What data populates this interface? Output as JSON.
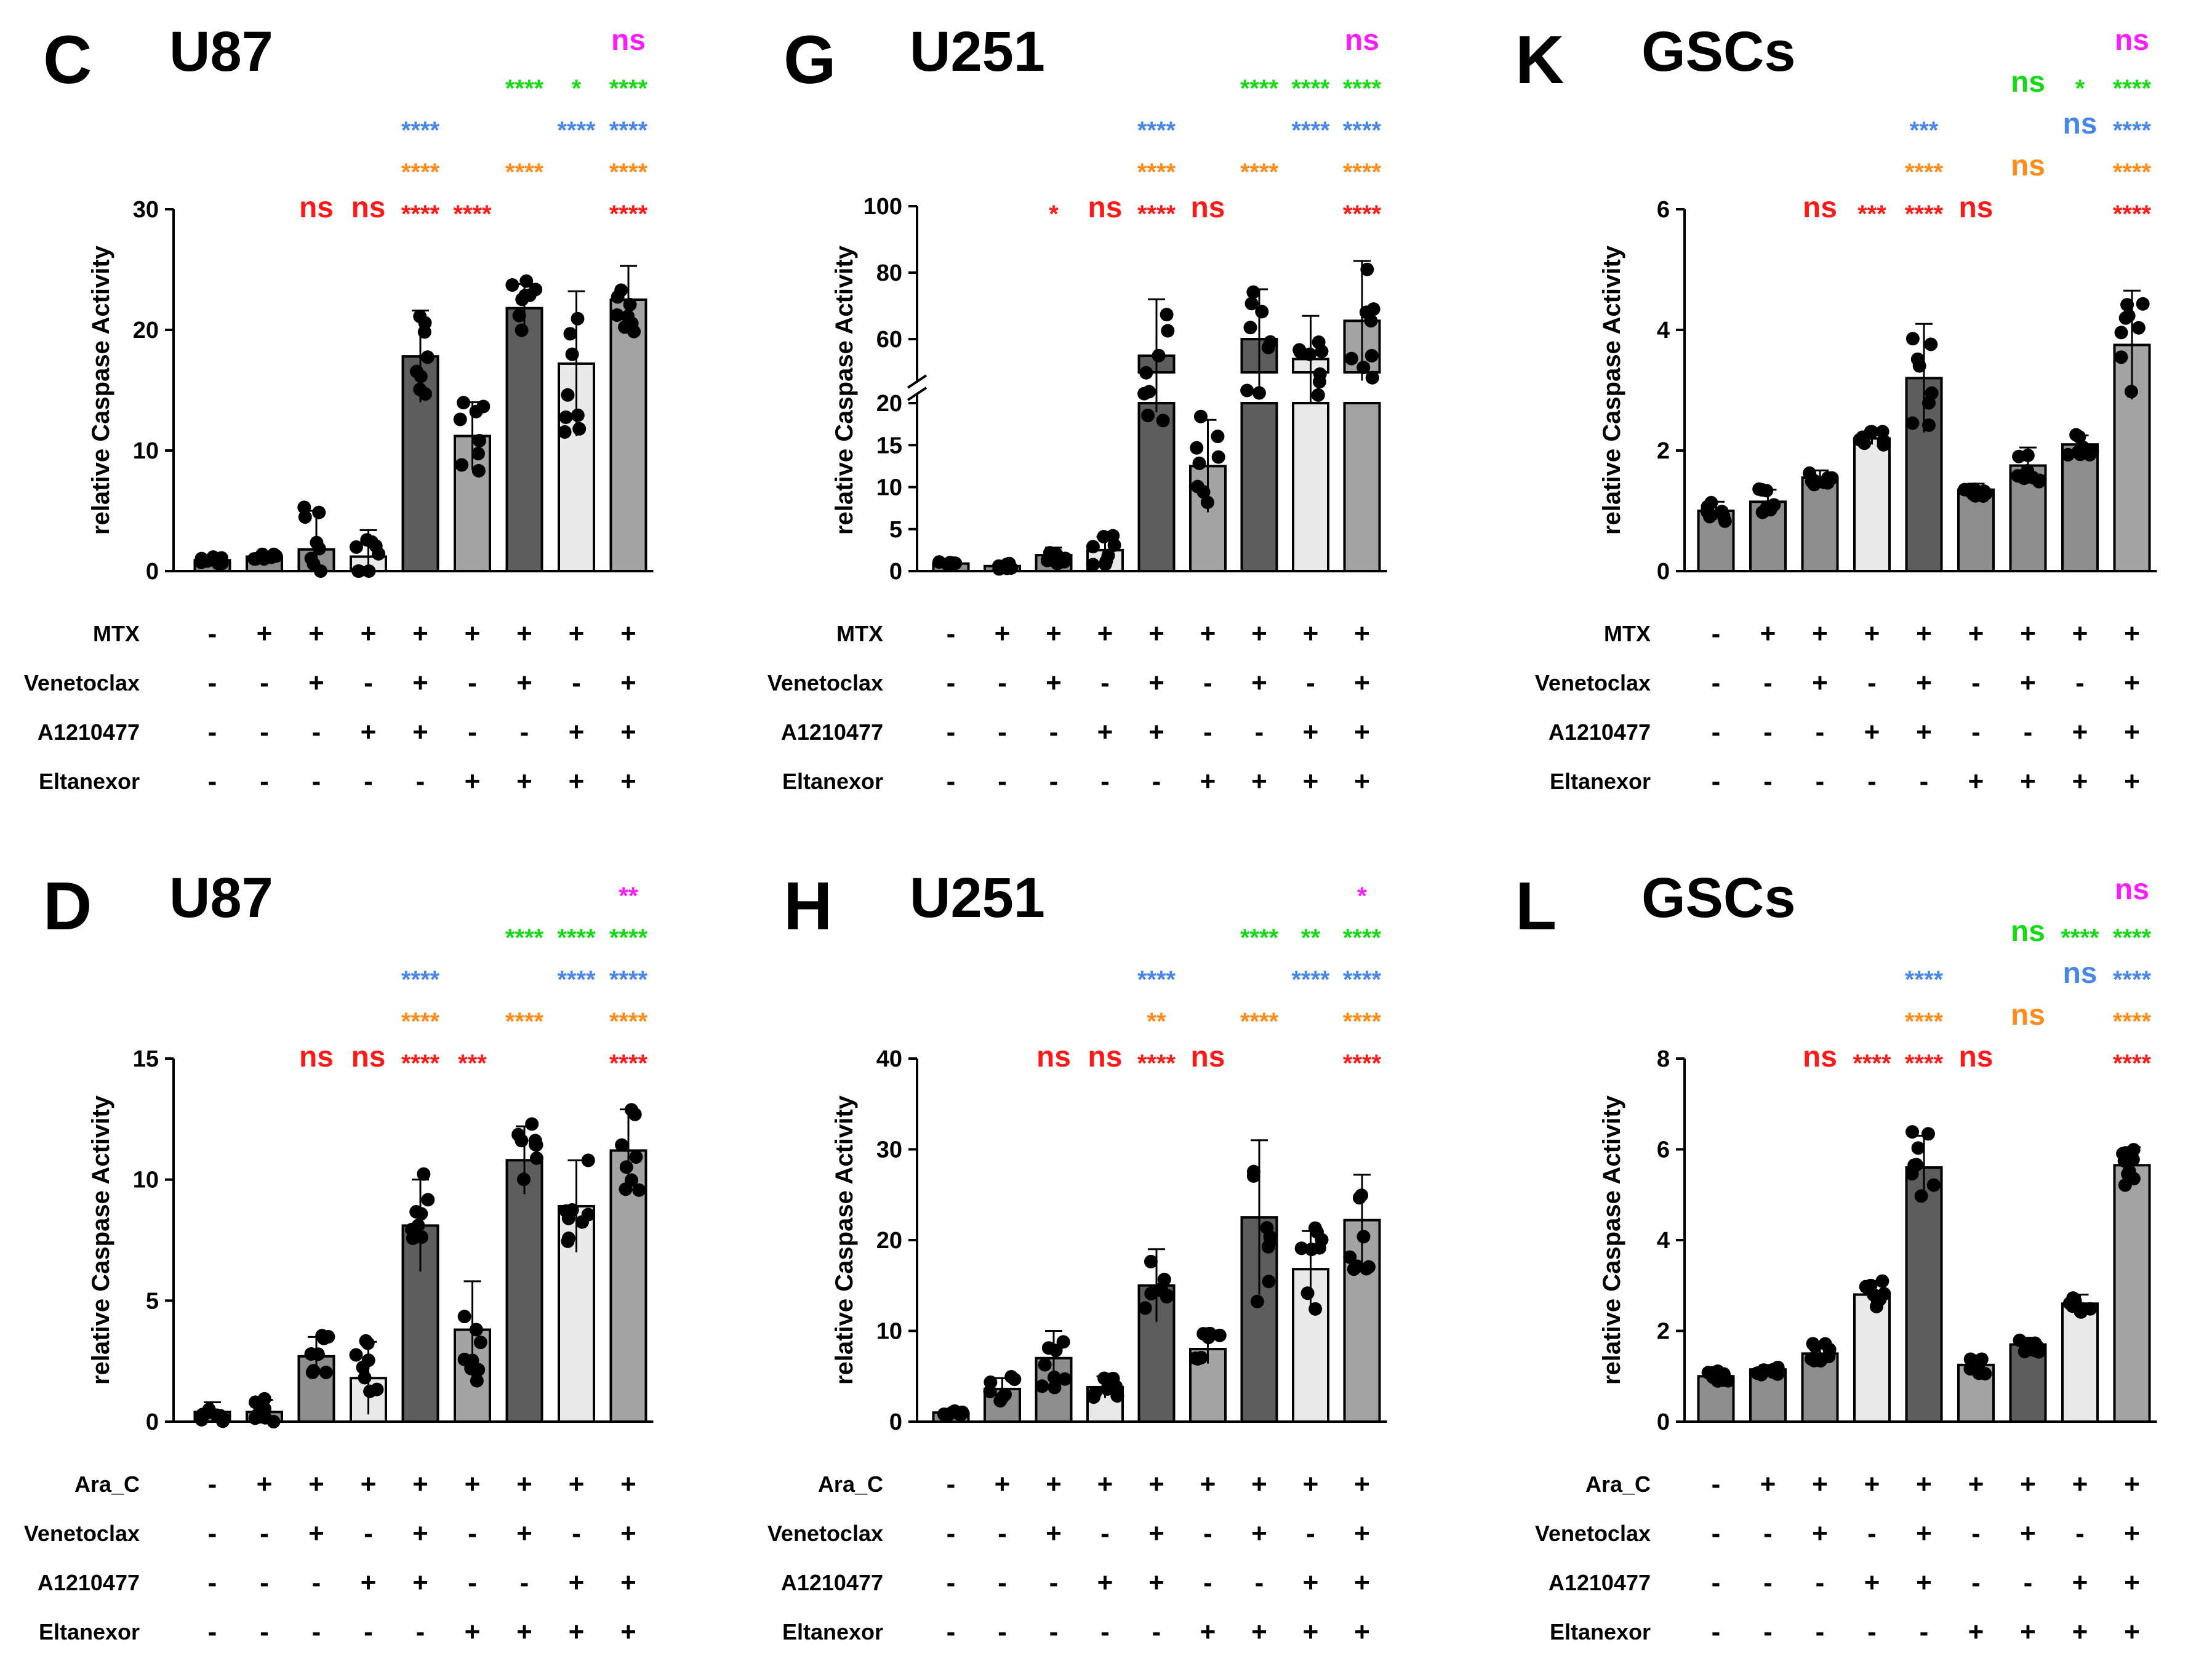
{
  "colors": {
    "red": "#ff1a1a",
    "orange": "#ff8c1a",
    "blue": "#4a86e8",
    "green": "#16d916",
    "magenta": "#ff1aff"
  },
  "chart_data": [
    {
      "letter": "C",
      "title": "U87",
      "type": "bar",
      "ylabel": "relative Caspase Activity",
      "ylim": [
        0,
        30
      ],
      "yticks": [
        "0",
        "10",
        "20",
        "30"
      ],
      "means": [
        0.9,
        1.2,
        1.8,
        1.2,
        17.8,
        11.2,
        21.8,
        17.2,
        22.5
      ],
      "sd": [
        0.3,
        0.2,
        3.2,
        2.2,
        3.8,
        2.8,
        2.0,
        6.0,
        2.8
      ],
      "rows": [
        {
          "label": "MTX",
          "signs": [
            "-",
            "+",
            "+",
            "+",
            "+",
            "+",
            "+",
            "+",
            "+"
          ]
        },
        {
          "label": "Venetoclax",
          "signs": [
            "-",
            "-",
            "+",
            "-",
            "+",
            "-",
            "+",
            "-",
            "+"
          ]
        },
        {
          "label": "A1210477",
          "signs": [
            "-",
            "-",
            "-",
            "+",
            "+",
            "-",
            "-",
            "+",
            "+"
          ]
        },
        {
          "label": "Eltanexor",
          "signs": [
            "-",
            "-",
            "-",
            "-",
            "-",
            "+",
            "+",
            "+",
            "+"
          ]
        }
      ],
      "sig": [
        {
          "color": "red",
          "items": [
            [
              "2",
              "ns"
            ],
            [
              "3",
              "ns"
            ],
            [
              "4",
              "****"
            ],
            [
              "5",
              "****"
            ],
            [
              "8",
              "****"
            ]
          ]
        },
        {
          "color": "orange",
          "items": [
            [
              "4",
              "****"
            ],
            [
              "6",
              "****"
            ],
            [
              "8",
              "****"
            ]
          ]
        },
        {
          "color": "blue",
          "items": [
            [
              "4",
              "****"
            ],
            [
              "7",
              "****"
            ],
            [
              "8",
              "****"
            ]
          ]
        },
        {
          "color": "green",
          "items": [
            [
              "6",
              "****"
            ],
            [
              "7",
              "*"
            ],
            [
              "8",
              "****"
            ]
          ]
        },
        {
          "color": "magenta",
          "items": [
            [
              "8",
              "ns"
            ]
          ]
        }
      ]
    },
    {
      "letter": "G",
      "title": "U251",
      "type": "bar",
      "ylabel": "relative Caspase Activity",
      "broken": true,
      "ylim_lower": [
        0,
        20
      ],
      "ylim_upper": [
        50,
        100
      ],
      "yticks": [
        "0",
        "5",
        "10",
        "15",
        "20",
        "60",
        "80",
        "100"
      ],
      "means": [
        0.9,
        0.6,
        1.9,
        2.5,
        55.0,
        12.5,
        60.0,
        54.0,
        65.5
      ],
      "sd": [
        0.2,
        0.3,
        0.9,
        1.6,
        17.0,
        5.5,
        15.0,
        13.0,
        18.0
      ],
      "rows": [
        {
          "label": "MTX",
          "signs": [
            "-",
            "+",
            "+",
            "+",
            "+",
            "+",
            "+",
            "+",
            "+"
          ]
        },
        {
          "label": "Venetoclax",
          "signs": [
            "-",
            "-",
            "+",
            "-",
            "+",
            "-",
            "+",
            "-",
            "+"
          ]
        },
        {
          "label": "A1210477",
          "signs": [
            "-",
            "-",
            "-",
            "+",
            "+",
            "-",
            "-",
            "+",
            "+"
          ]
        },
        {
          "label": "Eltanexor",
          "signs": [
            "-",
            "-",
            "-",
            "-",
            "-",
            "+",
            "+",
            "+",
            "+"
          ]
        }
      ],
      "sig": [
        {
          "color": "red",
          "items": [
            [
              "2",
              "*"
            ],
            [
              "3",
              "ns"
            ],
            [
              "4",
              "****"
            ],
            [
              "5",
              "ns"
            ],
            [
              "8",
              "****"
            ]
          ]
        },
        {
          "color": "orange",
          "items": [
            [
              "4",
              "****"
            ],
            [
              "6",
              "****"
            ],
            [
              "8",
              "****"
            ]
          ]
        },
        {
          "color": "blue",
          "items": [
            [
              "4",
              "****"
            ],
            [
              "7",
              "****"
            ],
            [
              "8",
              "****"
            ]
          ]
        },
        {
          "color": "green",
          "items": [
            [
              "6",
              "****"
            ],
            [
              "7",
              "****"
            ],
            [
              "8",
              "****"
            ]
          ]
        },
        {
          "color": "magenta",
          "items": [
            [
              "8",
              "ns"
            ]
          ]
        }
      ]
    },
    {
      "letter": "K",
      "title": "GSCs",
      "type": "bar",
      "ylabel": "relative Caspase Activity",
      "ylim": [
        0,
        6
      ],
      "yticks": [
        "0",
        "2",
        "4",
        "6"
      ],
      "means": [
        1.0,
        1.15,
        1.55,
        2.2,
        3.2,
        1.35,
        1.75,
        2.1,
        3.75
      ],
      "sd": [
        0.15,
        0.2,
        0.12,
        0.1,
        0.9,
        0.1,
        0.3,
        0.15,
        0.9
      ],
      "rows": [
        {
          "label": "MTX",
          "signs": [
            "-",
            "+",
            "+",
            "+",
            "+",
            "+",
            "+",
            "+",
            "+"
          ]
        },
        {
          "label": "Venetoclax",
          "signs": [
            "-",
            "-",
            "+",
            "-",
            "+",
            "-",
            "+",
            "-",
            "+"
          ]
        },
        {
          "label": "A1210477",
          "signs": [
            "-",
            "-",
            "-",
            "+",
            "+",
            "-",
            "-",
            "+",
            "+"
          ]
        },
        {
          "label": "Eltanexor",
          "signs": [
            "-",
            "-",
            "-",
            "-",
            "-",
            "+",
            "+",
            "+",
            "+"
          ]
        }
      ],
      "sig": [
        {
          "color": "red",
          "items": [
            [
              "2",
              "ns"
            ],
            [
              "3",
              "***"
            ],
            [
              "4",
              "****"
            ],
            [
              "5",
              "ns"
            ],
            [
              "8",
              "****"
            ]
          ]
        },
        {
          "color": "orange",
          "items": [
            [
              "4",
              "****"
            ],
            [
              "6",
              "ns"
            ],
            [
              "8",
              "****"
            ]
          ]
        },
        {
          "color": "blue",
          "items": [
            [
              "4",
              "***"
            ],
            [
              "7",
              "ns"
            ],
            [
              "8",
              "****"
            ]
          ]
        },
        {
          "color": "green",
          "items": [
            [
              "6",
              "ns"
            ],
            [
              "7",
              "*"
            ],
            [
              "8",
              "****"
            ]
          ]
        },
        {
          "color": "magenta",
          "items": [
            [
              "8",
              "ns"
            ]
          ]
        }
      ]
    },
    {
      "letter": "D",
      "title": "U87",
      "type": "bar",
      "ylabel": "relative Caspase Activity",
      "ylim": [
        0,
        15
      ],
      "yticks": [
        "0",
        "5",
        "10",
        "15"
      ],
      "means": [
        0.4,
        0.4,
        2.7,
        1.8,
        8.1,
        3.8,
        10.8,
        8.9,
        11.2
      ],
      "sd": [
        0.4,
        0.5,
        0.8,
        1.5,
        1.9,
        2.0,
        1.4,
        1.9,
        1.7
      ],
      "rows": [
        {
          "label": "Ara_C",
          "signs": [
            "-",
            "+",
            "+",
            "+",
            "+",
            "+",
            "+",
            "+",
            "+"
          ]
        },
        {
          "label": "Venetoclax",
          "signs": [
            "-",
            "-",
            "+",
            "-",
            "+",
            "-",
            "+",
            "-",
            "+"
          ]
        },
        {
          "label": "A1210477",
          "signs": [
            "-",
            "-",
            "-",
            "+",
            "+",
            "-",
            "-",
            "+",
            "+"
          ]
        },
        {
          "label": "Eltanexor",
          "signs": [
            "-",
            "-",
            "-",
            "-",
            "-",
            "+",
            "+",
            "+",
            "+"
          ]
        }
      ],
      "sig": [
        {
          "color": "red",
          "items": [
            [
              "2",
              "ns"
            ],
            [
              "3",
              "ns"
            ],
            [
              "4",
              "****"
            ],
            [
              "5",
              "***"
            ],
            [
              "8",
              "****"
            ]
          ]
        },
        {
          "color": "orange",
          "items": [
            [
              "4",
              "****"
            ],
            [
              "6",
              "****"
            ],
            [
              "8",
              "****"
            ]
          ]
        },
        {
          "color": "blue",
          "items": [
            [
              "4",
              "****"
            ],
            [
              "7",
              "****"
            ],
            [
              "8",
              "****"
            ]
          ]
        },
        {
          "color": "green",
          "items": [
            [
              "6",
              "****"
            ],
            [
              "7",
              "****"
            ],
            [
              "8",
              "****"
            ]
          ]
        },
        {
          "color": "magenta",
          "items": [
            [
              "8",
              "**"
            ]
          ]
        }
      ]
    },
    {
      "letter": "H",
      "title": "U251",
      "type": "bar",
      "ylabel": "relative Caspase Activity",
      "ylim": [
        0,
        40
      ],
      "yticks": [
        "0",
        "10",
        "20",
        "30",
        "40"
      ],
      "means": [
        1.0,
        3.6,
        7.0,
        3.8,
        15.0,
        8.0,
        22.5,
        16.8,
        22.2
      ],
      "sd": [
        0.3,
        1.2,
        3.0,
        1.2,
        4.0,
        1.6,
        8.5,
        4.2,
        5.0
      ],
      "rows": [
        {
          "label": "Ara_C",
          "signs": [
            "-",
            "+",
            "+",
            "+",
            "+",
            "+",
            "+",
            "+",
            "+"
          ]
        },
        {
          "label": "Venetoclax",
          "signs": [
            "-",
            "-",
            "+",
            "-",
            "+",
            "-",
            "+",
            "-",
            "+"
          ]
        },
        {
          "label": "A1210477",
          "signs": [
            "-",
            "-",
            "-",
            "+",
            "+",
            "-",
            "-",
            "+",
            "+"
          ]
        },
        {
          "label": "Eltanexor",
          "signs": [
            "-",
            "-",
            "-",
            "-",
            "-",
            "+",
            "+",
            "+",
            "+"
          ]
        }
      ],
      "sig": [
        {
          "color": "red",
          "items": [
            [
              "2",
              "ns"
            ],
            [
              "3",
              "ns"
            ],
            [
              "4",
              "****"
            ],
            [
              "5",
              "ns"
            ],
            [
              "8",
              "****"
            ]
          ]
        },
        {
          "color": "orange",
          "items": [
            [
              "4",
              "**"
            ],
            [
              "6",
              "****"
            ],
            [
              "8",
              "****"
            ]
          ]
        },
        {
          "color": "blue",
          "items": [
            [
              "4",
              "****"
            ],
            [
              "7",
              "****"
            ],
            [
              "8",
              "****"
            ]
          ]
        },
        {
          "color": "green",
          "items": [
            [
              "6",
              "****"
            ],
            [
              "7",
              "**"
            ],
            [
              "8",
              "****"
            ]
          ]
        },
        {
          "color": "magenta",
          "items": [
            [
              "8",
              "*"
            ]
          ]
        }
      ]
    },
    {
      "letter": "L",
      "title": "GSCs",
      "type": "bar",
      "ylabel": "relative Caspase Activity",
      "ylim": [
        0,
        8
      ],
      "yticks": [
        "0",
        "2",
        "4",
        "6",
        "8"
      ],
      "means": [
        1.0,
        1.15,
        1.5,
        2.8,
        5.6,
        1.25,
        1.7,
        2.6,
        5.65
      ],
      "sd": [
        0.1,
        0.1,
        0.2,
        0.3,
        0.7,
        0.2,
        0.15,
        0.2,
        0.4
      ],
      "rows": [
        {
          "label": "Ara_C",
          "signs": [
            "-",
            "+",
            "+",
            "+",
            "+",
            "+",
            "+",
            "+",
            "+"
          ]
        },
        {
          "label": "Venetoclax",
          "signs": [
            "-",
            "-",
            "+",
            "-",
            "+",
            "-",
            "+",
            "-",
            "+"
          ]
        },
        {
          "label": "A1210477",
          "signs": [
            "-",
            "-",
            "-",
            "+",
            "+",
            "-",
            "-",
            "+",
            "+"
          ]
        },
        {
          "label": "Eltanexor",
          "signs": [
            "-",
            "-",
            "-",
            "-",
            "-",
            "+",
            "+",
            "+",
            "+"
          ]
        }
      ],
      "sig": [
        {
          "color": "red",
          "items": [
            [
              "2",
              "ns"
            ],
            [
              "3",
              "****"
            ],
            [
              "4",
              "****"
            ],
            [
              "5",
              "ns"
            ],
            [
              "8",
              "****"
            ]
          ]
        },
        {
          "color": "orange",
          "items": [
            [
              "4",
              "****"
            ],
            [
              "6",
              "ns"
            ],
            [
              "8",
              "****"
            ]
          ]
        },
        {
          "color": "blue",
          "items": [
            [
              "4",
              "****"
            ],
            [
              "7",
              "ns"
            ],
            [
              "8",
              "****"
            ]
          ]
        },
        {
          "color": "green",
          "items": [
            [
              "6",
              "ns"
            ],
            [
              "7",
              "****"
            ],
            [
              "8",
              "****"
            ]
          ]
        },
        {
          "color": "magenta",
          "items": [
            [
              "8",
              "ns"
            ]
          ]
        }
      ]
    }
  ]
}
